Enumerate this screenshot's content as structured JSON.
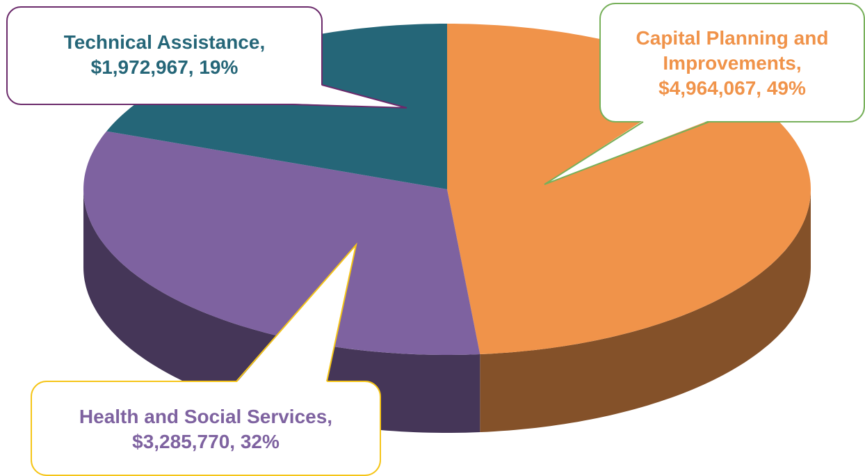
{
  "chart_data": {
    "type": "pie",
    "categories": [
      "Capital Planning and Improvements",
      "Health and Social Services",
      "Technical Assistance"
    ],
    "values": [
      4964067,
      3285770,
      1972967
    ],
    "value_labels": [
      "$4,964,067, 49%",
      "$3,285,770, 32%",
      "$1,972,967, 19%"
    ],
    "colors": [
      "#f0934a",
      "#7e62a0",
      "#256678"
    ]
  }
}
